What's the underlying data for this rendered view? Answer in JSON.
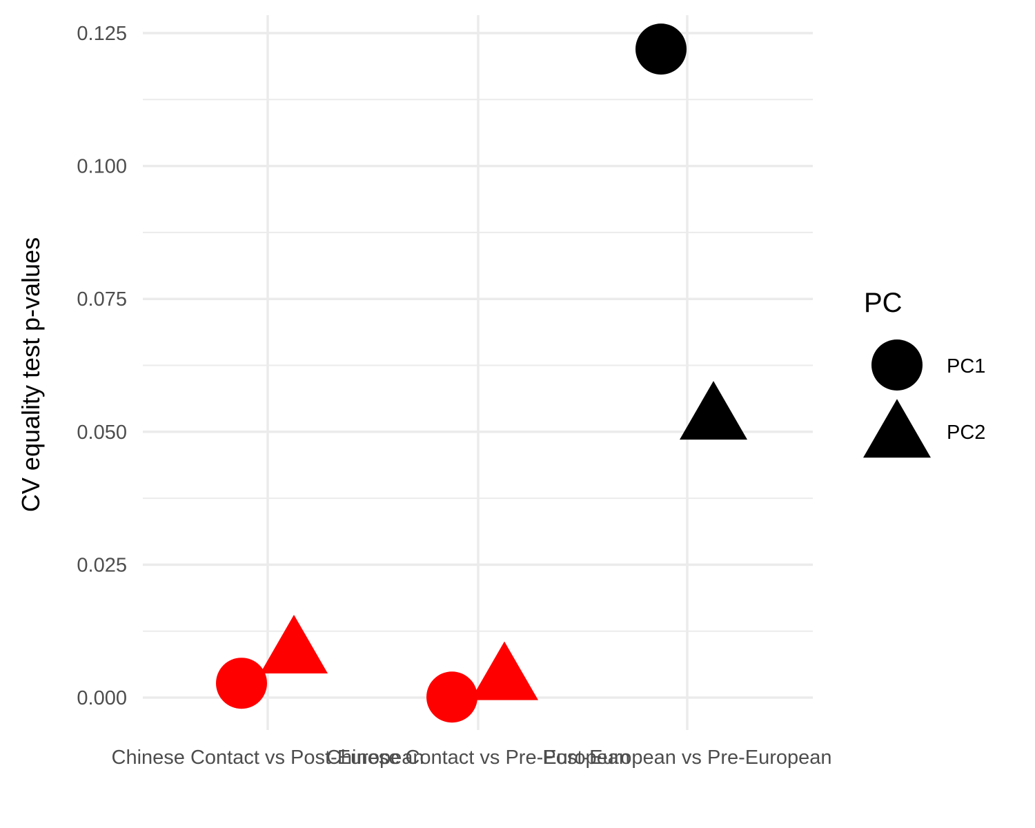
{
  "chart_data": {
    "type": "scatter",
    "title": "",
    "xlabel": "",
    "ylabel": "CV equality test p-values",
    "categories": [
      "Chinese Contact vs Post-European",
      "Chinese Contact vs Pre-European",
      "Post-European vs Pre-European"
    ],
    "yticks": [
      "0.000",
      "0.025",
      "0.050",
      "0.075",
      "0.100",
      "0.125"
    ],
    "ylim": [
      -0.004,
      0.1265
    ],
    "grid": true,
    "legend": {
      "title": "PC",
      "placement": "right",
      "entries": [
        {
          "label": "PC1",
          "shape": "circle"
        },
        {
          "label": "PC2",
          "shape": "triangle"
        }
      ]
    },
    "series": [
      {
        "name": "PC1",
        "shape": "circle",
        "values": [
          0.0027,
          0.0001,
          0.122
        ],
        "colors": [
          "#ff0000",
          "#ff0000",
          "#000000"
        ]
      },
      {
        "name": "PC2",
        "shape": "triangle",
        "values": [
          0.0095,
          0.0045,
          0.0535
        ],
        "colors": [
          "#ff0000",
          "#ff0000",
          "#000000"
        ]
      }
    ]
  }
}
